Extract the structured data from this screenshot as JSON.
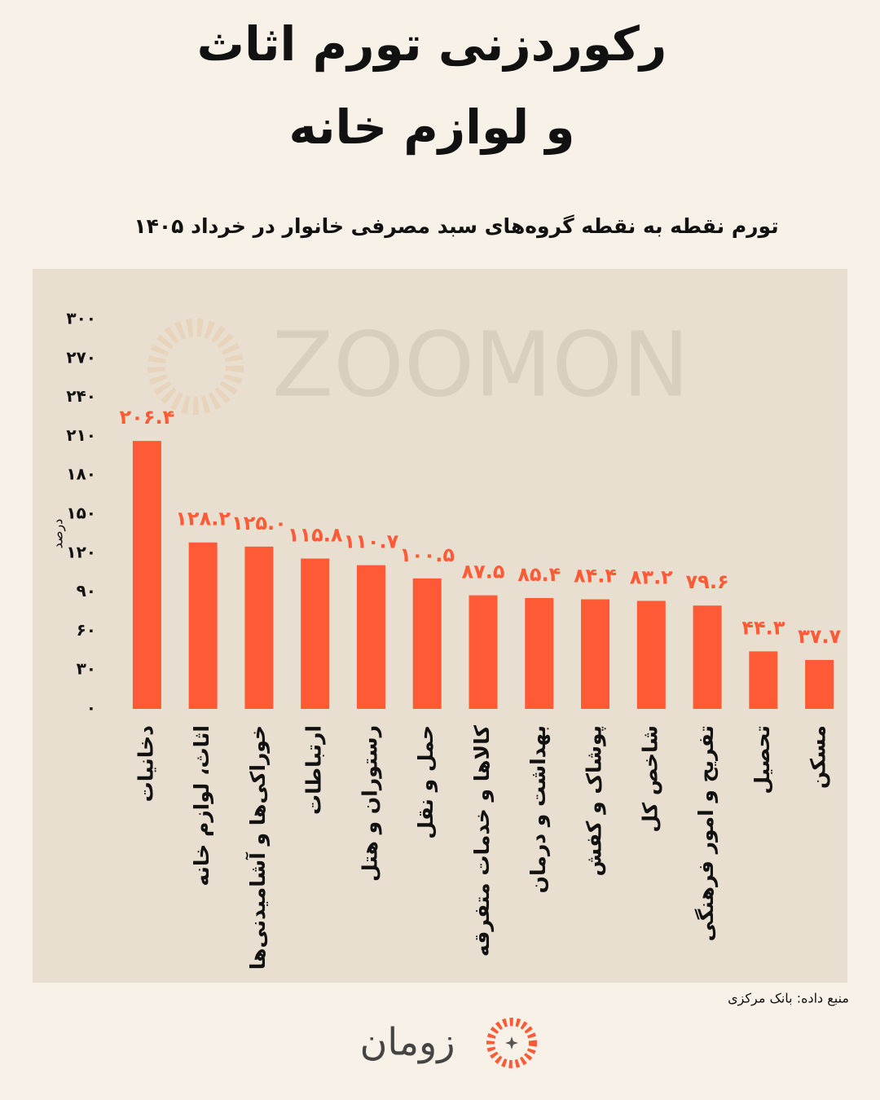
{
  "chart_data": {
    "type": "bar",
    "title": [
      "رکوردزنی تورم اثاث",
      "و لوازم خانه"
    ],
    "subtitle": "تورم نقطه به نقطه گروه‌های سبد مصرفی خانوار در خرداد ۱۴۰۵",
    "y_label": "درصد",
    "watermark": "ZOOMON",
    "source": "منبع داده: بانک مرکزی",
    "logo": "زومان",
    "categories": [
      "دخانیات",
      "اثاث، لوازم خانه",
      "خوراکی‌ها و آشامیدنی‌ها",
      "ارتباطات",
      "رستوران و هتل",
      "حمل و نقل",
      "کالاها و خدمات متفرقه",
      "بهداشت و درمان",
      "پوشاک و کفش",
      "شاخص کل",
      "تفریح و امور فرهنگی",
      "تحصیل",
      "مسکن"
    ],
    "values": [
      206.4,
      128.2,
      125,
      115.8,
      110.7,
      100.5,
      87.5,
      85.4,
      84.4,
      83.2,
      79.6,
      44.3,
      37.7
    ],
    "value_labels": [
      "۲۰۶.۴",
      "۱۲۸.۲",
      "۱۲۵.۰",
      "۱۱۵.۸",
      "۱۱۰.۷",
      "۱۰۰.۵",
      "۸۷.۵",
      "۸۵.۴",
      "۸۴.۴",
      "۸۳.۲",
      "۷۹.۶",
      "۴۴.۳",
      "۳۷.۷"
    ],
    "color": "#ff5a36",
    "ylim": [
      0,
      300
    ],
    "yticks": [
      {
        "value": 0,
        "label": "۰"
      },
      {
        "value": 30,
        "label": "۳۰"
      },
      {
        "value": 60,
        "label": "۶۰"
      },
      {
        "value": 90,
        "label": "۹۰"
      },
      {
        "value": 120,
        "label": "۱۲۰"
      },
      {
        "value": 150,
        "label": "۱۵۰"
      },
      {
        "value": 180,
        "label": "۱۸۰"
      },
      {
        "value": 210,
        "label": "۲۱۰"
      },
      {
        "value": 240,
        "label": "۲۴۰"
      },
      {
        "value": 270,
        "label": "۲۷۰"
      },
      {
        "value": 300,
        "label": "۳۰۰"
      }
    ],
    "grid": false
  }
}
